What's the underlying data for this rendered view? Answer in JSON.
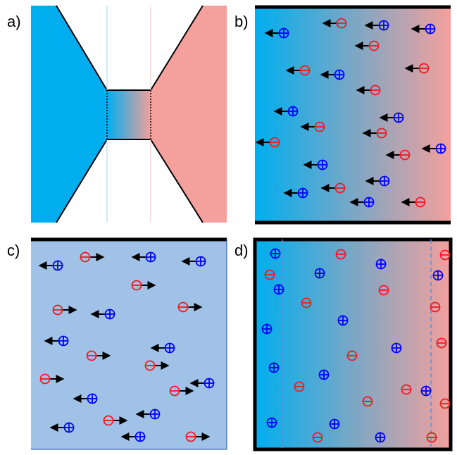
{
  "panels": [
    {
      "id": "a",
      "label": "a)"
    },
    {
      "id": "b",
      "label": "b)"
    },
    {
      "id": "c",
      "label": "c)"
    },
    {
      "id": "d",
      "label": "d)"
    }
  ],
  "colors": {
    "blue_reservoir": "#00aeef",
    "red_reservoir": "#f4a09c",
    "mixed_region": "#9fc2e6",
    "positive_ion": "#0000ff",
    "negative_ion": "#ee1b24",
    "arrow": "#000000",
    "electrode_line": "#5b8fd6"
  },
  "symbols": {
    "positive": "⊕",
    "negative": "⊖"
  }
}
